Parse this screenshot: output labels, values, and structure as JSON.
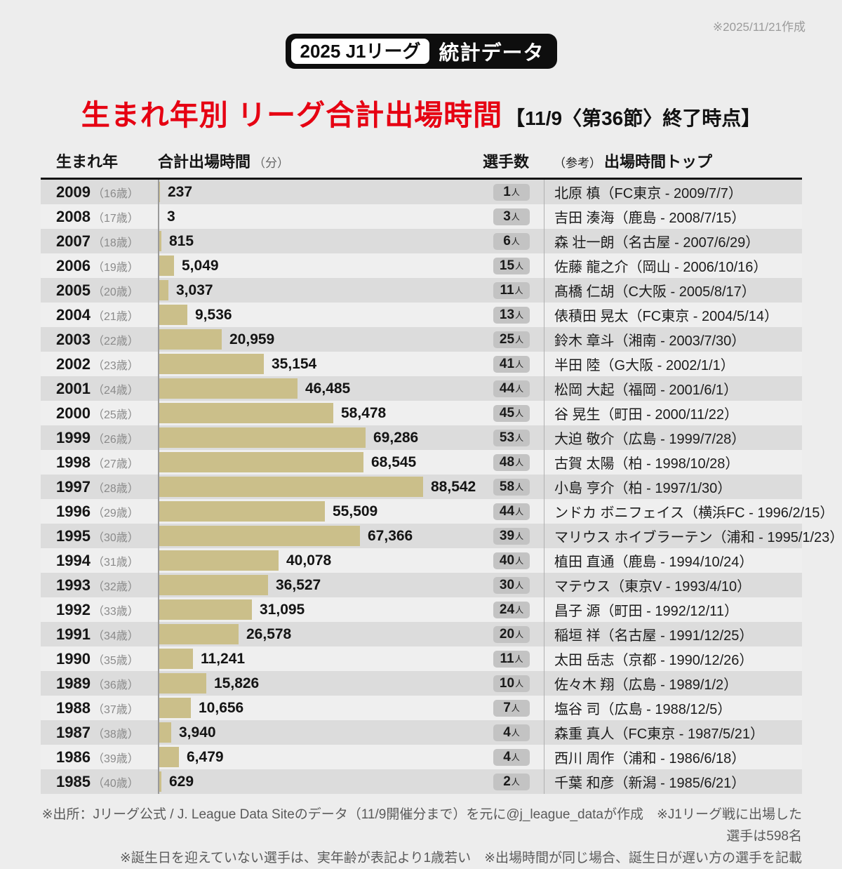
{
  "meta": {
    "created_note": "※2025/11/21作成"
  },
  "badge": {
    "left": "2025 J1リーグ",
    "right": "統計データ"
  },
  "title": {
    "main": "生まれ年別 リーグ合計出場時間",
    "suffix": "【11/9〈第36節〉終了時点】"
  },
  "table": {
    "headers": {
      "year": "生まれ年",
      "minutes": "合計出場時間",
      "minutes_unit": "（分）",
      "players": "選手数",
      "top_ref": "（参考）",
      "top": "出場時間トップ"
    },
    "rows": [
      {
        "year": "2009",
        "age": "（16歳）",
        "minutes": "237",
        "minutes_value": 237,
        "players": "1",
        "players_unit": "人",
        "top_player": "北原 槙（FC東京 - 2009/7/7）"
      },
      {
        "year": "2008",
        "age": "（17歳）",
        "minutes": "3",
        "minutes_value": 3,
        "players": "3",
        "players_unit": "人",
        "top_player": "吉田 湊海（鹿島 - 2008/7/15）"
      },
      {
        "year": "2007",
        "age": "（18歳）",
        "minutes": "815",
        "minutes_value": 815,
        "players": "6",
        "players_unit": "人",
        "top_player": "森 壮一朗（名古屋 - 2007/6/29）"
      },
      {
        "year": "2006",
        "age": "（19歳）",
        "minutes": "5,049",
        "minutes_value": 5049,
        "players": "15",
        "players_unit": "人",
        "top_player": "佐藤 龍之介（岡山 - 2006/10/16）"
      },
      {
        "year": "2005",
        "age": "（20歳）",
        "minutes": "3,037",
        "minutes_value": 3037,
        "players": "11",
        "players_unit": "人",
        "top_player": "髙橋 仁胡（C大阪 - 2005/8/17）"
      },
      {
        "year": "2004",
        "age": "（21歳）",
        "minutes": "9,536",
        "minutes_value": 9536,
        "players": "13",
        "players_unit": "人",
        "top_player": "俵積田 晃太（FC東京 - 2004/5/14）"
      },
      {
        "year": "2003",
        "age": "（22歳）",
        "minutes": "20,959",
        "minutes_value": 20959,
        "players": "25",
        "players_unit": "人",
        "top_player": "鈴木 章斗（湘南 - 2003/7/30）"
      },
      {
        "year": "2002",
        "age": "（23歳）",
        "minutes": "35,154",
        "minutes_value": 35154,
        "players": "41",
        "players_unit": "人",
        "top_player": "半田 陸（G大阪 - 2002/1/1）"
      },
      {
        "year": "2001",
        "age": "（24歳）",
        "minutes": "46,485",
        "minutes_value": 46485,
        "players": "44",
        "players_unit": "人",
        "top_player": "松岡 大起（福岡 - 2001/6/1）"
      },
      {
        "year": "2000",
        "age": "（25歳）",
        "minutes": "58,478",
        "minutes_value": 58478,
        "players": "45",
        "players_unit": "人",
        "top_player": "谷 晃生（町田 - 2000/11/22）"
      },
      {
        "year": "1999",
        "age": "（26歳）",
        "minutes": "69,286",
        "minutes_value": 69286,
        "players": "53",
        "players_unit": "人",
        "top_player": "大迫 敬介（広島 - 1999/7/28）"
      },
      {
        "year": "1998",
        "age": "（27歳）",
        "minutes": "68,545",
        "minutes_value": 68545,
        "players": "48",
        "players_unit": "人",
        "top_player": "古賀 太陽（柏 - 1998/10/28）"
      },
      {
        "year": "1997",
        "age": "（28歳）",
        "minutes": "88,542",
        "minutes_value": 88542,
        "players": "58",
        "players_unit": "人",
        "top_player": "小島 亨介（柏 - 1997/1/30）"
      },
      {
        "year": "1996",
        "age": "（29歳）",
        "minutes": "55,509",
        "minutes_value": 55509,
        "players": "44",
        "players_unit": "人",
        "top_player": "ンドカ ボニフェイス（横浜FC - 1996/2/15）"
      },
      {
        "year": "1995",
        "age": "（30歳）",
        "minutes": "67,366",
        "minutes_value": 67366,
        "players": "39",
        "players_unit": "人",
        "top_player": "マリウス ホイブラーテン（浦和 - 1995/1/23）"
      },
      {
        "year": "1994",
        "age": "（31歳）",
        "minutes": "40,078",
        "minutes_value": 40078,
        "players": "40",
        "players_unit": "人",
        "top_player": "植田 直通（鹿島 - 1994/10/24）"
      },
      {
        "year": "1993",
        "age": "（32歳）",
        "minutes": "36,527",
        "minutes_value": 36527,
        "players": "30",
        "players_unit": "人",
        "top_player": "マテウス（東京V - 1993/4/10）"
      },
      {
        "year": "1992",
        "age": "（33歳）",
        "minutes": "31,095",
        "minutes_value": 31095,
        "players": "24",
        "players_unit": "人",
        "top_player": "昌子 源（町田 - 1992/12/11）"
      },
      {
        "year": "1991",
        "age": "（34歳）",
        "minutes": "26,578",
        "minutes_value": 26578,
        "players": "20",
        "players_unit": "人",
        "top_player": "稲垣 祥（名古屋 - 1991/12/25）"
      },
      {
        "year": "1990",
        "age": "（35歳）",
        "minutes": "11,241",
        "minutes_value": 11241,
        "players": "11",
        "players_unit": "人",
        "top_player": "太田 岳志（京都 - 1990/12/26）"
      },
      {
        "year": "1989",
        "age": "（36歳）",
        "minutes": "15,826",
        "minutes_value": 15826,
        "players": "10",
        "players_unit": "人",
        "top_player": "佐々木 翔（広島 - 1989/1/2）"
      },
      {
        "year": "1988",
        "age": "（37歳）",
        "minutes": "10,656",
        "minutes_value": 10656,
        "players": "7",
        "players_unit": "人",
        "top_player": "塩谷 司（広島 - 1988/12/5）"
      },
      {
        "year": "1987",
        "age": "（38歳）",
        "minutes": "3,940",
        "minutes_value": 3940,
        "players": "4",
        "players_unit": "人",
        "top_player": "森重 真人（FC東京 - 1987/5/21）"
      },
      {
        "year": "1986",
        "age": "（39歳）",
        "minutes": "6,479",
        "minutes_value": 6479,
        "players": "4",
        "players_unit": "人",
        "top_player": "西川 周作（浦和 - 1986/6/18）"
      },
      {
        "year": "1985",
        "age": "（40歳）",
        "minutes": "629",
        "minutes_value": 629,
        "players": "2",
        "players_unit": "人",
        "top_player": "千葉 和彦（新潟 - 1985/6/21）"
      }
    ]
  },
  "footer": {
    "line1": "※出所：Jリーグ公式 / J. League Data Siteのデータ（11/9開催分まで）を元に@j_league_dataが作成　※J1リーグ戦に出場した選手は598名",
    "line2": "※誕生日を迎えていない選手は、実年齢が表記より1歳若い　※出場時間が同じ場合、誕生日が遅い方の選手を記載"
  },
  "colors": {
    "page_bg": "#ededed",
    "row_dark": "#dcdcdc",
    "row_light": "#efefef",
    "bar": "#cbbf8a",
    "accent_red": "#e60012",
    "badge_bg": "#c3c3c3",
    "header_black": "#141414",
    "note_gray": "#9b9b9b"
  },
  "chart_data": {
    "type": "bar",
    "orientation": "horizontal",
    "title": "生まれ年別 リーグ合計出場時間（分）【11/9〈第36節〉終了時点】",
    "xlabel": "合計出場時間（分）",
    "ylabel": "生まれ年",
    "xlim": [
      0,
      90000
    ],
    "grid": false,
    "bar_color": "#cbbf8a",
    "categories": [
      2009,
      2008,
      2007,
      2006,
      2005,
      2004,
      2003,
      2002,
      2001,
      2000,
      1999,
      1998,
      1997,
      1996,
      1995,
      1994,
      1993,
      1992,
      1991,
      1990,
      1989,
      1988,
      1987,
      1986,
      1985
    ],
    "ages": [
      16,
      17,
      18,
      19,
      20,
      21,
      22,
      23,
      24,
      25,
      26,
      27,
      28,
      29,
      30,
      31,
      32,
      33,
      34,
      35,
      36,
      37,
      38,
      39,
      40
    ],
    "series": [
      {
        "name": "合計出場時間（分）",
        "values": [
          237,
          3,
          815,
          5049,
          3037,
          9536,
          20959,
          35154,
          46485,
          58478,
          69286,
          68545,
          88542,
          55509,
          67366,
          40078,
          36527,
          31095,
          26578,
          11241,
          15826,
          10656,
          3940,
          6479,
          629
        ]
      },
      {
        "name": "選手数（人）",
        "values": [
          1,
          3,
          6,
          15,
          11,
          13,
          25,
          41,
          44,
          45,
          53,
          48,
          58,
          44,
          39,
          40,
          30,
          24,
          20,
          11,
          10,
          7,
          4,
          4,
          2
        ]
      }
    ],
    "annotations": [
      "北原 槙（FC東京 - 2009/7/7）",
      "吉田 湊海（鹿島 - 2008/7/15）",
      "森 壮一朗（名古屋 - 2007/6/29）",
      "佐藤 龍之介（岡山 - 2006/10/16）",
      "髙橋 仁胡（C大阪 - 2005/8/17）",
      "俵積田 晃太（FC東京 - 2004/5/14）",
      "鈴木 章斗（湘南 - 2003/7/30）",
      "半田 陸（G大阪 - 2002/1/1）",
      "松岡 大起（福岡 - 2001/6/1）",
      "谷 晃生（町田 - 2000/11/22）",
      "大迫 敬介（広島 - 1999/7/28）",
      "古賀 太陽（柏 - 1998/10/28）",
      "小島 亨介（柏 - 1997/1/30）",
      "ンドカ ボニフェイス（横浜FC - 1996/2/15）",
      "マリウス ホイブラーテン（浦和 - 1995/1/23）",
      "植田 直通（鹿島 - 1994/10/24）",
      "マテウス（東京V - 1993/4/10）",
      "昌子 源（町田 - 1992/12/11）",
      "稲垣 祥（名古屋 - 1991/12/25）",
      "太田 岳志（京都 - 1990/12/26）",
      "佐々木 翔（広島 - 1989/1/2）",
      "塩谷 司（広島 - 1988/12/5）",
      "森重 真人（FC東京 - 1987/5/21）",
      "西川 周作（浦和 - 1986/6/18）",
      "千葉 和彦（新潟 - 1985/6/21）"
    ]
  }
}
